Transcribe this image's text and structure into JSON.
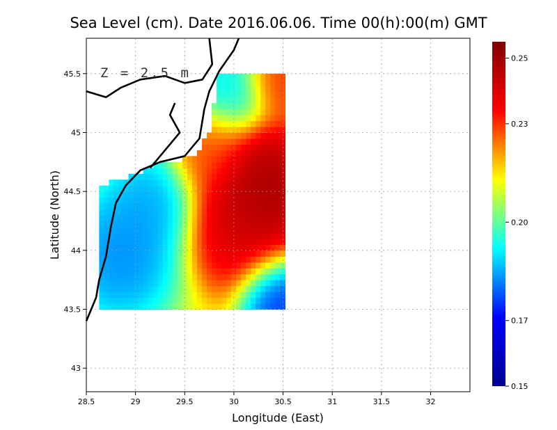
{
  "chart_data": {
    "type": "heatmap",
    "title": "Sea Level (cm). Date 2016.06.06. Time 00(h):00(m) GMT",
    "xlabel": "Longitude (East)",
    "ylabel": "Latitude (North)",
    "annotation": "Z = 2.5 m",
    "xlim": [
      28.5,
      32.4
    ],
    "ylim": [
      42.8,
      45.8
    ],
    "xticks": [
      28.5,
      29,
      29.5,
      30,
      30.5,
      31,
      31.5,
      32
    ],
    "yticks": [
      43,
      43.5,
      44,
      44.5,
      45,
      45.5
    ],
    "xtick_labels": [
      "28.5",
      "29",
      "29.5",
      "30",
      "30.5",
      "31",
      "31.5",
      "32"
    ],
    "ytick_labels": [
      "43",
      "43.5",
      "44",
      "44.5",
      "45",
      "45.5"
    ],
    "grid": true,
    "colorbar": {
      "min": 0.15,
      "max": 0.255,
      "ticks": [
        0.15,
        0.17,
        0.2,
        0.23,
        0.25
      ],
      "tick_labels": [
        "0.15",
        "0.17",
        "0.20",
        "0.23",
        "0.25"
      ],
      "colormap": [
        "#00008f",
        "#0000ff",
        "#00ffff",
        "#ffff00",
        "#ff0000",
        "#800000"
      ]
    },
    "field": {
      "lon_range": [
        28.63,
        30.52
      ],
      "lat_range": [
        43.5,
        45.5
      ],
      "centers": [
        {
          "lon": 28.85,
          "lat": 43.95,
          "value": 0.178,
          "radius": 0.45
        },
        {
          "lon": 29.15,
          "lat": 44.4,
          "value": 0.182,
          "radius": 0.35
        },
        {
          "lon": 29.95,
          "lat": 45.35,
          "value": 0.188,
          "radius": 0.3
        },
        {
          "lon": 30.45,
          "lat": 43.6,
          "value": 0.168,
          "radius": 0.3
        },
        {
          "lon": 30.3,
          "lat": 44.5,
          "value": 0.255,
          "radius": 0.45
        },
        {
          "lon": 30.05,
          "lat": 44.15,
          "value": 0.242,
          "radius": 0.4
        },
        {
          "lon": 30.45,
          "lat": 45.45,
          "value": 0.232,
          "radius": 0.25
        },
        {
          "lon": 29.75,
          "lat": 44.85,
          "value": 0.228,
          "radius": 0.3
        }
      ],
      "background": 0.212,
      "land_mask": [
        [
          28.63,
          44.55
        ],
        [
          29.0,
          44.65
        ],
        [
          29.2,
          44.73
        ],
        [
          29.6,
          44.8
        ],
        [
          29.75,
          45.0
        ],
        [
          29.8,
          45.25
        ],
        [
          29.8,
          45.5
        ],
        [
          28.63,
          45.5
        ]
      ]
    },
    "coastline": [
      [
        [
          28.5,
          43.4
        ],
        [
          28.6,
          43.6
        ],
        [
          28.63,
          43.75
        ],
        [
          28.7,
          43.95
        ],
        [
          28.75,
          44.2
        ],
        [
          28.8,
          44.4
        ],
        [
          28.9,
          44.55
        ],
        [
          29.05,
          44.68
        ],
        [
          29.25,
          44.75
        ],
        [
          29.5,
          44.8
        ],
        [
          29.65,
          44.95
        ],
        [
          29.7,
          45.2
        ],
        [
          29.75,
          45.35
        ],
        [
          29.85,
          45.52
        ],
        [
          30.0,
          45.7
        ],
        [
          30.05,
          45.8
        ]
      ],
      [
        [
          28.5,
          45.35
        ],
        [
          28.7,
          45.3
        ],
        [
          28.85,
          45.38
        ],
        [
          29.05,
          45.45
        ],
        [
          29.3,
          45.48
        ],
        [
          29.5,
          45.42
        ],
        [
          29.68,
          45.45
        ],
        [
          29.78,
          45.58
        ],
        [
          29.75,
          45.8
        ]
      ],
      [
        [
          29.15,
          44.7
        ],
        [
          29.3,
          44.85
        ],
        [
          29.45,
          45.0
        ],
        [
          29.35,
          45.15
        ],
        [
          29.4,
          45.25
        ]
      ]
    ]
  }
}
